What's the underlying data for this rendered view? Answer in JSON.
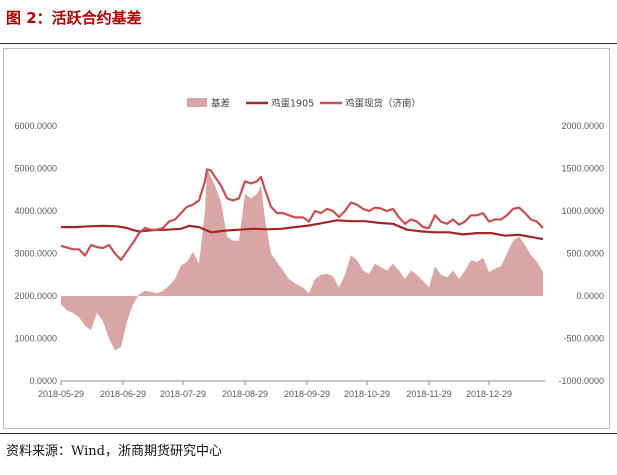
{
  "header": {
    "title": "图 2：活跃合约基差"
  },
  "footer": {
    "source": "资料来源：Wind，浙商期货研究中心"
  },
  "colors": {
    "title": "#b00000",
    "spread_fill": "#d9a5a5",
    "futures_line": "#a32626",
    "spot_line": "#c94f4f"
  },
  "chart_data": {
    "type": "line",
    "legend_position": "top-center",
    "grid": false,
    "x_ticks": [
      "2018-05-29",
      "2018-06-29",
      "2018-07-29",
      "2018-08-29",
      "2018-09-29",
      "2018-10-29",
      "2018-11-29",
      "2018-12-29"
    ],
    "xlim": [
      "2018-05-29",
      "2019-01-26"
    ],
    "left_axis": {
      "ticks": [
        "0.0000",
        "1000.0000",
        "2000.0000",
        "3000.0000",
        "4000.0000",
        "5000.0000",
        "6000.0000"
      ],
      "ylim": [
        0,
        6000
      ]
    },
    "right_axis": {
      "ticks": [
        "-1000.0000",
        "-500.0000",
        "0.0000",
        "500.0000",
        "1000.0000",
        "1500.0000",
        "2000.0000"
      ],
      "ylim": [
        -1000,
        2000
      ]
    },
    "series": [
      {
        "name": "基差",
        "kind": "area",
        "axis": "right",
        "color": "#d9a5a5",
        "points": [
          [
            "2018-05-29",
            -100
          ],
          [
            "2018-06-01",
            -170
          ],
          [
            "2018-06-04",
            -200
          ],
          [
            "2018-06-07",
            -250
          ],
          [
            "2018-06-10",
            -350
          ],
          [
            "2018-06-13",
            -400
          ],
          [
            "2018-06-16",
            -200
          ],
          [
            "2018-06-19",
            -300
          ],
          [
            "2018-06-22",
            -500
          ],
          [
            "2018-06-25",
            -640
          ],
          [
            "2018-06-28",
            -600
          ],
          [
            "2018-07-01",
            -300
          ],
          [
            "2018-07-04",
            -100
          ],
          [
            "2018-07-07",
            20
          ],
          [
            "2018-07-10",
            60
          ],
          [
            "2018-07-13",
            50
          ],
          [
            "2018-07-16",
            30
          ],
          [
            "2018-07-19",
            60
          ],
          [
            "2018-07-22",
            120
          ],
          [
            "2018-07-25",
            200
          ],
          [
            "2018-07-28",
            360
          ],
          [
            "2018-07-31",
            400
          ],
          [
            "2018-08-03",
            520
          ],
          [
            "2018-08-06",
            380
          ],
          [
            "2018-08-09",
            1000
          ],
          [
            "2018-08-10",
            1500
          ],
          [
            "2018-08-12",
            1400
          ],
          [
            "2018-08-14",
            1300
          ],
          [
            "2018-08-17",
            1100
          ],
          [
            "2018-08-20",
            700
          ],
          [
            "2018-08-23",
            650
          ],
          [
            "2018-08-26",
            650
          ],
          [
            "2018-08-29",
            1200
          ],
          [
            "2018-09-01",
            1150
          ],
          [
            "2018-09-04",
            1200
          ],
          [
            "2018-09-06",
            1300
          ],
          [
            "2018-09-08",
            900
          ],
          [
            "2018-09-11",
            500
          ],
          [
            "2018-09-14",
            400
          ],
          [
            "2018-09-17",
            300
          ],
          [
            "2018-09-20",
            200
          ],
          [
            "2018-09-23",
            150
          ],
          [
            "2018-09-27",
            100
          ],
          [
            "2018-09-30",
            30
          ],
          [
            "2018-10-03",
            200
          ],
          [
            "2018-10-06",
            250
          ],
          [
            "2018-10-09",
            260
          ],
          [
            "2018-10-12",
            230
          ],
          [
            "2018-10-15",
            100
          ],
          [
            "2018-10-18",
            250
          ],
          [
            "2018-10-21",
            480
          ],
          [
            "2018-10-24",
            420
          ],
          [
            "2018-10-27",
            300
          ],
          [
            "2018-10-30",
            260
          ],
          [
            "2018-11-02",
            380
          ],
          [
            "2018-11-05",
            340
          ],
          [
            "2018-11-08",
            300
          ],
          [
            "2018-11-11",
            380
          ],
          [
            "2018-11-14",
            300
          ],
          [
            "2018-11-17",
            200
          ],
          [
            "2018-11-20",
            300
          ],
          [
            "2018-11-23",
            250
          ],
          [
            "2018-11-26",
            180
          ],
          [
            "2018-11-29",
            100
          ],
          [
            "2018-12-02",
            350
          ],
          [
            "2018-12-05",
            250
          ],
          [
            "2018-12-08",
            220
          ],
          [
            "2018-12-11",
            300
          ],
          [
            "2018-12-14",
            200
          ],
          [
            "2018-12-17",
            300
          ],
          [
            "2018-12-20",
            420
          ],
          [
            "2018-12-23",
            400
          ],
          [
            "2018-12-26",
            450
          ],
          [
            "2018-12-29",
            280
          ],
          [
            "2019-01-01",
            320
          ],
          [
            "2019-01-04",
            350
          ],
          [
            "2019-01-07",
            500
          ],
          [
            "2019-01-10",
            650
          ],
          [
            "2019-01-13",
            700
          ],
          [
            "2019-01-16",
            600
          ],
          [
            "2019-01-19",
            480
          ],
          [
            "2019-01-22",
            400
          ],
          [
            "2019-01-25",
            280
          ]
        ]
      },
      {
        "name": "鸡蛋1905",
        "kind": "line",
        "axis": "left",
        "color": "#a32626",
        "points": [
          [
            "2018-05-29",
            3620
          ],
          [
            "2018-06-05",
            3620
          ],
          [
            "2018-06-12",
            3640
          ],
          [
            "2018-06-19",
            3650
          ],
          [
            "2018-06-26",
            3640
          ],
          [
            "2018-07-01",
            3600
          ],
          [
            "2018-07-04",
            3550
          ],
          [
            "2018-07-07",
            3520
          ],
          [
            "2018-07-14",
            3550
          ],
          [
            "2018-07-21",
            3560
          ],
          [
            "2018-07-28",
            3580
          ],
          [
            "2018-08-01",
            3650
          ],
          [
            "2018-08-06",
            3620
          ],
          [
            "2018-08-12",
            3500
          ],
          [
            "2018-08-19",
            3540
          ],
          [
            "2018-08-26",
            3560
          ],
          [
            "2018-09-02",
            3580
          ],
          [
            "2018-09-09",
            3570
          ],
          [
            "2018-09-16",
            3580
          ],
          [
            "2018-09-23",
            3620
          ],
          [
            "2018-09-30",
            3660
          ],
          [
            "2018-10-07",
            3720
          ],
          [
            "2018-10-14",
            3780
          ],
          [
            "2018-10-21",
            3760
          ],
          [
            "2018-10-28",
            3760
          ],
          [
            "2018-11-04",
            3720
          ],
          [
            "2018-11-11",
            3700
          ],
          [
            "2018-11-18",
            3560
          ],
          [
            "2018-11-25",
            3520
          ],
          [
            "2018-12-02",
            3500
          ],
          [
            "2018-12-09",
            3500
          ],
          [
            "2018-12-16",
            3450
          ],
          [
            "2018-12-23",
            3480
          ],
          [
            "2018-12-30",
            3480
          ],
          [
            "2019-01-06",
            3420
          ],
          [
            "2019-01-13",
            3440
          ],
          [
            "2019-01-20",
            3380
          ],
          [
            "2019-01-25",
            3340
          ]
        ]
      },
      {
        "name": "鸡蛋现货（济南）",
        "kind": "line",
        "axis": "left",
        "color": "#c94f4f",
        "points": [
          [
            "2018-05-29",
            3180
          ],
          [
            "2018-06-01",
            3140
          ],
          [
            "2018-06-04",
            3100
          ],
          [
            "2018-06-07",
            3100
          ],
          [
            "2018-06-10",
            2950
          ],
          [
            "2018-06-13",
            3200
          ],
          [
            "2018-06-16",
            3150
          ],
          [
            "2018-06-19",
            3130
          ],
          [
            "2018-06-22",
            3200
          ],
          [
            "2018-06-25",
            3000
          ],
          [
            "2018-06-28",
            2850
          ],
          [
            "2018-07-01",
            3050
          ],
          [
            "2018-07-04",
            3250
          ],
          [
            "2018-07-07",
            3480
          ],
          [
            "2018-07-10",
            3600
          ],
          [
            "2018-07-13",
            3560
          ],
          [
            "2018-07-16",
            3560
          ],
          [
            "2018-07-19",
            3600
          ],
          [
            "2018-07-22",
            3750
          ],
          [
            "2018-07-25",
            3800
          ],
          [
            "2018-07-28",
            3950
          ],
          [
            "2018-07-31",
            4100
          ],
          [
            "2018-08-03",
            4150
          ],
          [
            "2018-08-06",
            4250
          ],
          [
            "2018-08-09",
            4700
          ],
          [
            "2018-08-10",
            4980
          ],
          [
            "2018-08-12",
            4950
          ],
          [
            "2018-08-14",
            4800
          ],
          [
            "2018-08-17",
            4600
          ],
          [
            "2018-08-20",
            4300
          ],
          [
            "2018-08-23",
            4250
          ],
          [
            "2018-08-26",
            4300
          ],
          [
            "2018-08-29",
            4700
          ],
          [
            "2018-09-01",
            4650
          ],
          [
            "2018-09-04",
            4700
          ],
          [
            "2018-09-06",
            4800
          ],
          [
            "2018-09-08",
            4500
          ],
          [
            "2018-09-11",
            4100
          ],
          [
            "2018-09-14",
            3950
          ],
          [
            "2018-09-17",
            3950
          ],
          [
            "2018-09-20",
            3900
          ],
          [
            "2018-09-23",
            3850
          ],
          [
            "2018-09-27",
            3850
          ],
          [
            "2018-09-30",
            3750
          ],
          [
            "2018-10-03",
            4000
          ],
          [
            "2018-10-06",
            3950
          ],
          [
            "2018-10-09",
            4050
          ],
          [
            "2018-10-12",
            4000
          ],
          [
            "2018-10-15",
            3860
          ],
          [
            "2018-10-18",
            4000
          ],
          [
            "2018-10-21",
            4200
          ],
          [
            "2018-10-24",
            4150
          ],
          [
            "2018-10-27",
            4050
          ],
          [
            "2018-10-30",
            4000
          ],
          [
            "2018-11-02",
            4080
          ],
          [
            "2018-11-05",
            4060
          ],
          [
            "2018-11-08",
            4000
          ],
          [
            "2018-11-11",
            4050
          ],
          [
            "2018-11-14",
            3850
          ],
          [
            "2018-11-17",
            3700
          ],
          [
            "2018-11-20",
            3800
          ],
          [
            "2018-11-23",
            3750
          ],
          [
            "2018-11-26",
            3620
          ],
          [
            "2018-11-29",
            3600
          ],
          [
            "2018-12-02",
            3900
          ],
          [
            "2018-12-05",
            3750
          ],
          [
            "2018-12-08",
            3700
          ],
          [
            "2018-12-11",
            3800
          ],
          [
            "2018-12-14",
            3680
          ],
          [
            "2018-12-17",
            3750
          ],
          [
            "2018-12-20",
            3900
          ],
          [
            "2018-12-23",
            3900
          ],
          [
            "2018-12-26",
            3950
          ],
          [
            "2018-12-29",
            3750
          ],
          [
            "2019-01-01",
            3800
          ],
          [
            "2019-01-04",
            3800
          ],
          [
            "2019-01-07",
            3900
          ],
          [
            "2019-01-10",
            4050
          ],
          [
            "2019-01-13",
            4080
          ],
          [
            "2019-01-16",
            3950
          ],
          [
            "2019-01-19",
            3800
          ],
          [
            "2019-01-22",
            3750
          ],
          [
            "2019-01-25",
            3600
          ]
        ]
      }
    ]
  }
}
